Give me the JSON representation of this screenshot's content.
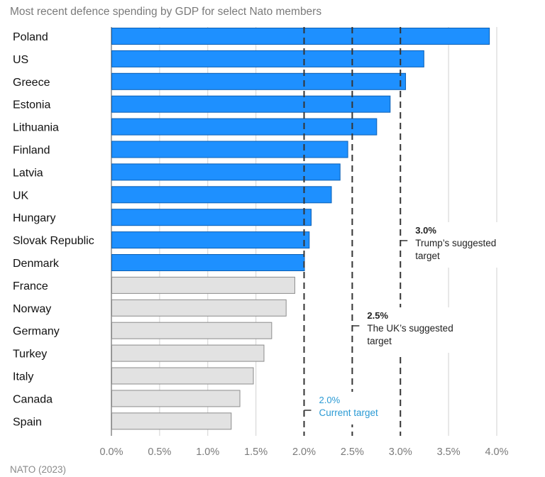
{
  "chart_data": {
    "type": "bar",
    "orientation": "horizontal",
    "title": "Most recent defence spending by GDP for select Nato members",
    "source": "NATO (2023)",
    "categories": [
      "Poland",
      "US",
      "Greece",
      "Estonia",
      "Lithuania",
      "Finland",
      "Latvia",
      "UK",
      "Hungary",
      "Slovak Republic",
      "Denmark",
      "France",
      "Norway",
      "Germany",
      "Turkey",
      "Italy",
      "Canada",
      "Spain"
    ],
    "values": [
      3.92,
      3.24,
      3.05,
      2.89,
      2.75,
      2.45,
      2.37,
      2.28,
      2.07,
      2.05,
      2.0,
      1.9,
      1.81,
      1.66,
      1.58,
      1.47,
      1.33,
      1.24
    ],
    "highlight": [
      true,
      true,
      true,
      true,
      true,
      true,
      true,
      true,
      true,
      true,
      true,
      false,
      false,
      false,
      false,
      false,
      false,
      false
    ],
    "xlim": [
      0,
      4.0
    ],
    "xticks": [
      0,
      0.5,
      1.0,
      1.5,
      2.0,
      2.5,
      3.0,
      3.5,
      4.0
    ],
    "xtick_labels": [
      "0.0%",
      "0.5%",
      "1.0%",
      "1.5%",
      "2.0%",
      "2.5%",
      "3.0%",
      "3.5%",
      "4.0%"
    ],
    "grid": true,
    "colors": {
      "highlight": "#1e90ff",
      "highlight_border": "#0a5fb4",
      "other": "#e2e2e2",
      "other_border": "#8c8c8c",
      "grid": "#d9d9d9",
      "reference_line": "#333333",
      "current_target": "#2a9ad4"
    },
    "reference_lines": [
      {
        "value": 2.0,
        "label_value": "2.0%",
        "label_lines": [
          "Current target"
        ],
        "style": "current"
      },
      {
        "value": 2.5,
        "label_value": "2.5%",
        "label_lines": [
          "The UK’s suggested",
          "target"
        ],
        "style": "normal"
      },
      {
        "value": 3.0,
        "label_value": "3.0%",
        "label_lines": [
          "Trump’s suggested",
          "target"
        ],
        "style": "normal"
      }
    ]
  }
}
